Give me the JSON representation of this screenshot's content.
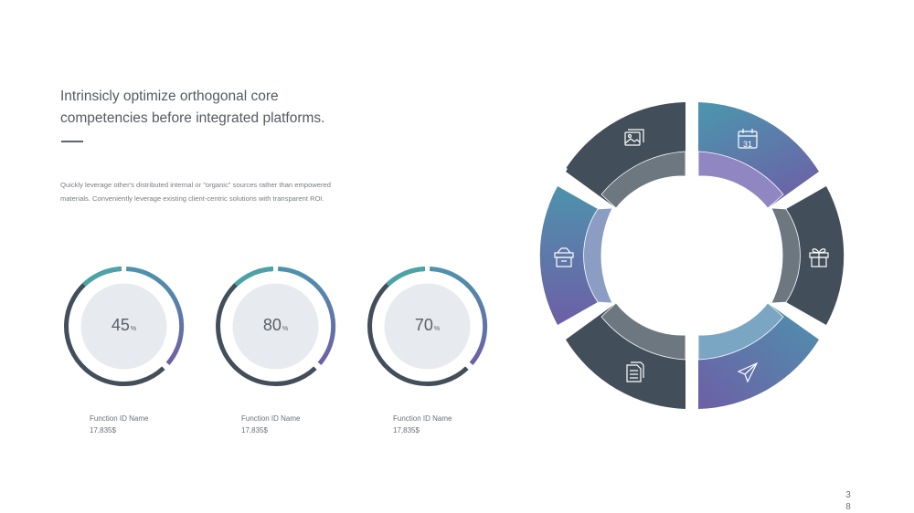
{
  "headline": {
    "line1": "Intrinsicly optimize orthogonal core",
    "line2": "competencies before integrated platforms."
  },
  "body_text": "Quickly leverage other's distributed internal or \"organic\" sources rather than empowered materials. Conveniently leverage existing client-centric solutions with transparent ROI.",
  "donuts": [
    {
      "value": "45",
      "unit": "%",
      "label": "Function ID Name",
      "amount": "17,835$"
    },
    {
      "value": "80",
      "unit": "%",
      "label": "Function ID Name",
      "amount": "17,835$"
    },
    {
      "value": "70",
      "unit": "%",
      "label": "Function ID Name",
      "amount": "17,835$"
    }
  ],
  "ring": {
    "segments": [
      {
        "name": "top-left",
        "icon": "image-gallery-icon",
        "style": "dark"
      },
      {
        "name": "top-right",
        "icon": "calendar-icon",
        "icon_text": "31",
        "style": "gradient"
      },
      {
        "name": "right",
        "icon": "gift-icon",
        "style": "dark"
      },
      {
        "name": "bottom-right",
        "icon": "paper-plane-icon",
        "style": "gradient"
      },
      {
        "name": "bottom-left",
        "icon": "documents-icon",
        "style": "dark"
      },
      {
        "name": "left",
        "icon": "archive-box-icon",
        "style": "gradient"
      }
    ]
  },
  "page_number": {
    "d1": "3",
    "d2": "8"
  },
  "colors": {
    "dark": "#424e5a",
    "dark_inner": "#6c7780",
    "teal": "#4e92ad",
    "purple": "#6d5fa6",
    "accent_teal": "#4aa3a8",
    "text_dark": "#555b63",
    "text_muted": "#777d84",
    "donut_fill": "#e7ebef"
  }
}
